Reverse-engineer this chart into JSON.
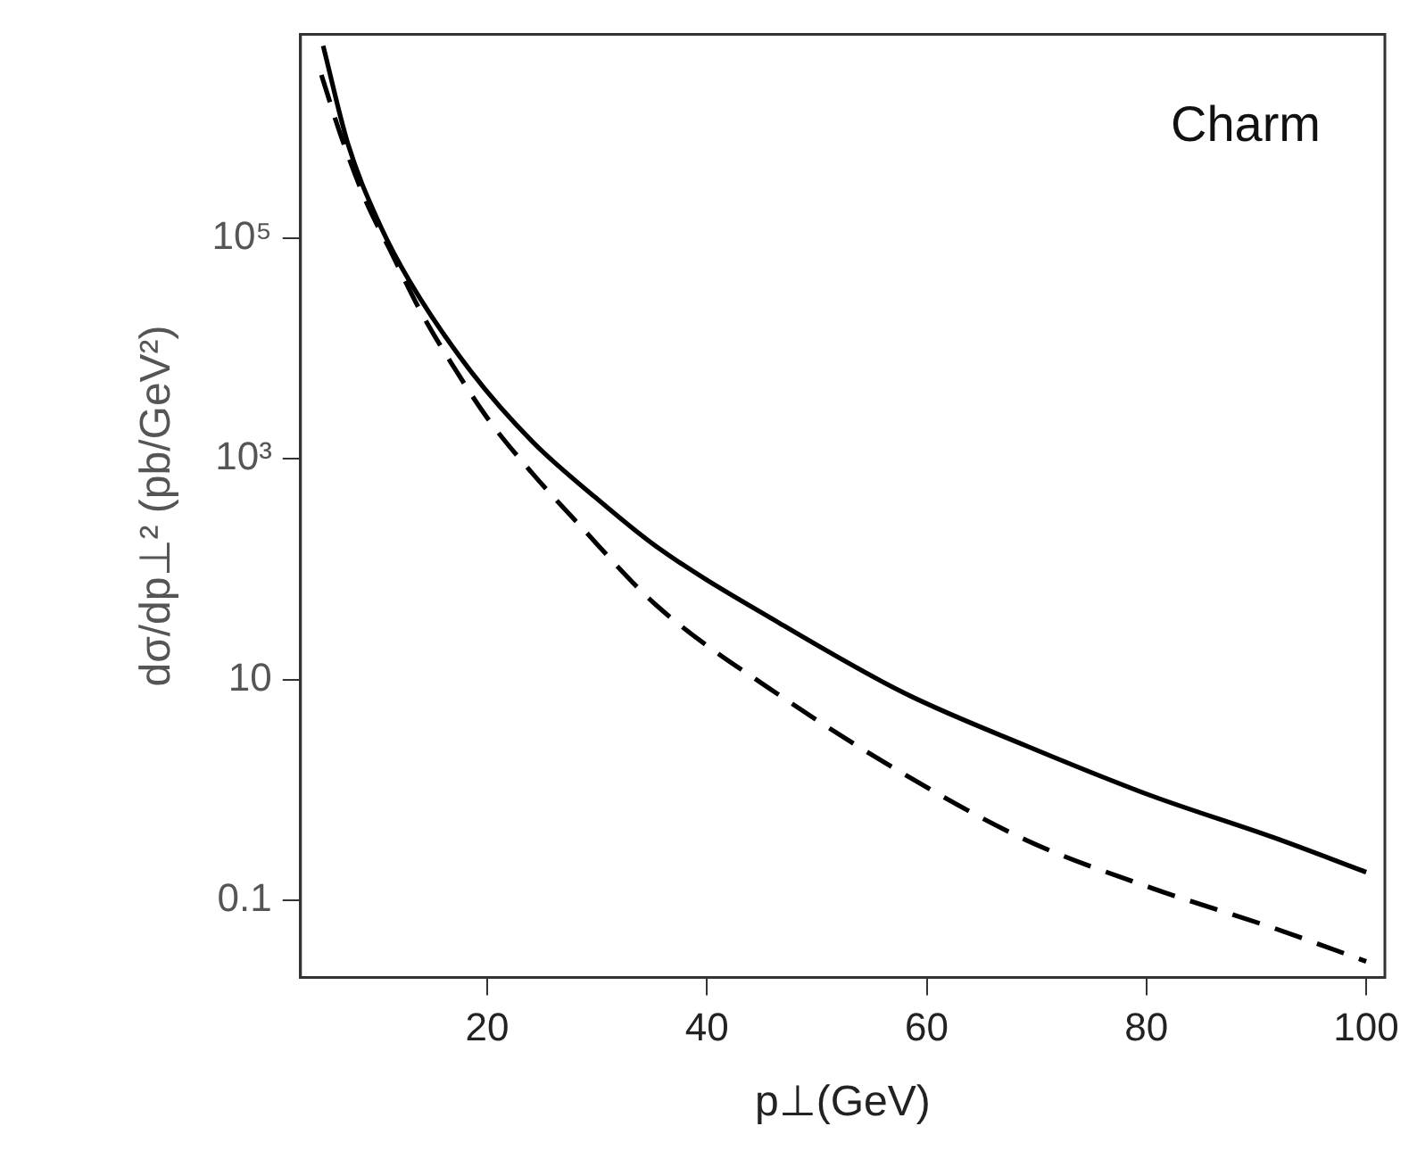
{
  "chart_data": {
    "type": "line",
    "xlabel": "p⊥(GeV)",
    "ylabel": "dσ/dp⊥² (pb/GeV²)",
    "annotations": [
      "Charm"
    ],
    "log": "y",
    "grid": false,
    "marker": "none",
    "xlim": [
      3,
      101.7
    ],
    "xticks": [
      20,
      40,
      60,
      80,
      100
    ],
    "ylim": [
      0.02,
      7000000
    ],
    "yticks": [
      {
        "value": 100000,
        "label": "10⁵"
      },
      {
        "value": 1000,
        "label": "10³"
      },
      10,
      0.1
    ],
    "series": [
      {
        "color": "#000000",
        "line_style": "solid",
        "x": [
          5.06,
          7.3,
          10.1,
          12.9,
          18.5,
          24.2,
          29.8,
          35.4,
          46.7,
          57.9,
          69.1,
          80.4,
          91.6,
          100
        ],
        "values": [
          5500000,
          720000,
          140000,
          41000,
          6200,
          1400,
          450,
          160,
          32,
          7.6,
          2.5,
          0.89,
          0.37,
          0.18
        ]
      },
      {
        "color": "#000000",
        "line_style": "dashed",
        "x": [
          4.9,
          6.7,
          9.0,
          11.2,
          14.0,
          16.9,
          20.2,
          24.2,
          28.1,
          35.4,
          46.7,
          57.9,
          69.1,
          80.4,
          91.6,
          100
        ],
        "values": [
          3000000,
          830000,
          210000,
          76000,
          21000,
          6900,
          2200,
          720,
          270,
          47,
          7.1,
          1.4,
          0.35,
          0.13,
          0.056,
          0.028
        ]
      }
    ]
  }
}
